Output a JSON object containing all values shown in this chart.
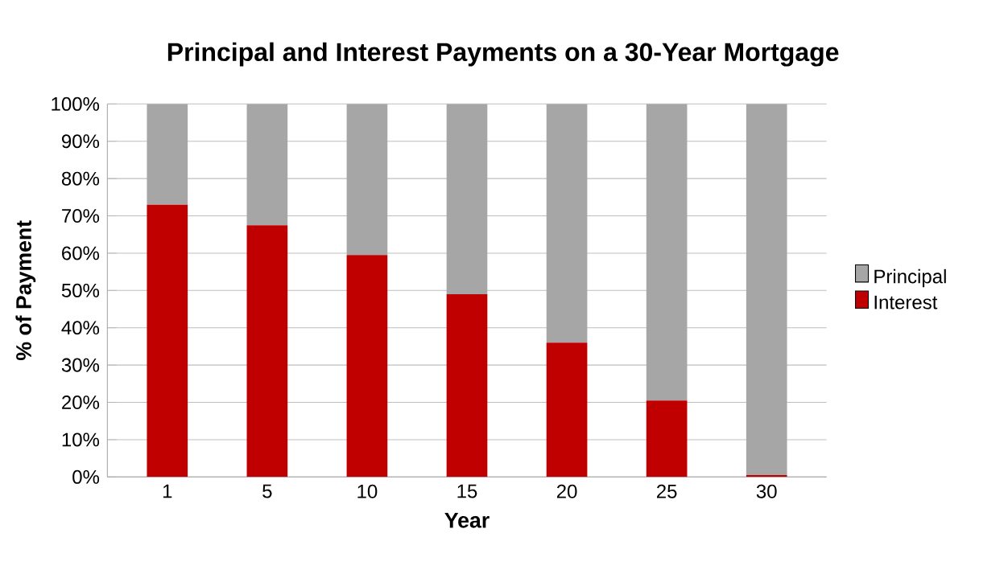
{
  "chart_data": {
    "type": "bar",
    "title": "Principal and Interest Payments on a 30-Year Mortgage",
    "xlabel": "Year",
    "ylabel": "% of Payment",
    "categories": [
      "1",
      "5",
      "10",
      "15",
      "20",
      "25",
      "30"
    ],
    "series": [
      {
        "name": "Interest",
        "color": "#c00000",
        "values": [
          73,
          67.5,
          59.5,
          49,
          36,
          20.5,
          0.5
        ]
      },
      {
        "name": "Principal",
        "color": "#a6a6a6",
        "values": [
          27,
          32.5,
          40.5,
          51,
          64,
          79.5,
          99.5
        ]
      }
    ],
    "stacked": true,
    "ylim": [
      0,
      100
    ],
    "yticks": [
      {
        "value": 0,
        "label": "0%"
      },
      {
        "value": 10,
        "label": "10%"
      },
      {
        "value": 20,
        "label": "20%"
      },
      {
        "value": 30,
        "label": "30%"
      },
      {
        "value": 40,
        "label": "40%"
      },
      {
        "value": 50,
        "label": "50%"
      },
      {
        "value": 60,
        "label": "60%"
      },
      {
        "value": 70,
        "label": "70%"
      },
      {
        "value": 80,
        "label": "80%"
      },
      {
        "value": 90,
        "label": "90%"
      },
      {
        "value": 100,
        "label": "100%"
      }
    ],
    "grid": "y",
    "legend": "right"
  }
}
